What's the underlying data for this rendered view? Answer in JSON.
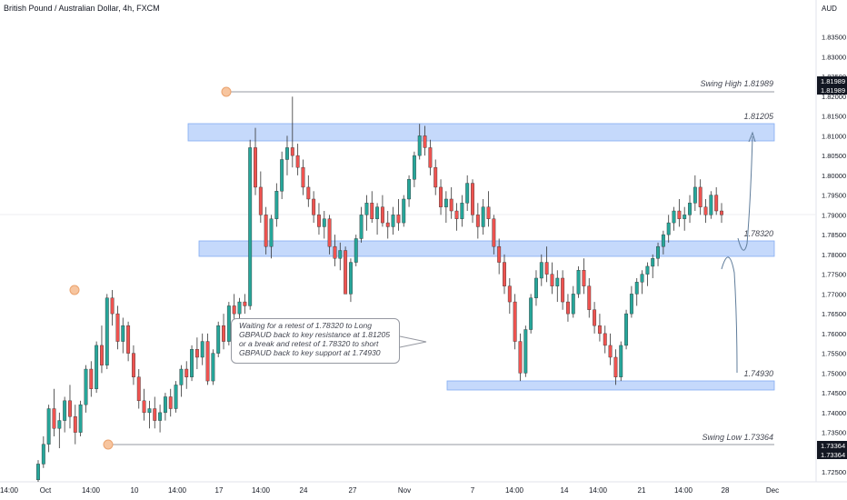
{
  "header": {
    "title": "British Pound / Australian Dollar, 4h, FXCM"
  },
  "chart_data": {
    "type": "candlestick",
    "symbol": "British Pound / Australian Dollar",
    "timeframe": "4h",
    "source": "FXCM",
    "currency_label": "AUD",
    "ylim": [
      1.7225,
      1.8425
    ],
    "y_ticks": [
      "1.72500",
      "1.73000",
      "1.73500",
      "1.74000",
      "1.74500",
      "1.75000",
      "1.75500",
      "1.76000",
      "1.76500",
      "1.77000",
      "1.77500",
      "1.78000",
      "1.78500",
      "1.79000",
      "1.79500",
      "1.80000",
      "1.80500",
      "1.81000",
      "1.81500",
      "1.82000",
      "1.82500",
      "1.83000",
      "1.83500"
    ],
    "x_ticks": [
      "14:00",
      "Oct",
      "14:00",
      "10",
      "14:00",
      "17",
      "14:00",
      "24",
      "27",
      "Nov",
      "7",
      "14:00",
      "14",
      "14:00",
      "21",
      "14:00",
      "28",
      "Dec"
    ],
    "price_labels": [
      {
        "text": "1.81989",
        "value": 1.81989,
        "color": "#131722"
      },
      {
        "text": "1.73364",
        "value": 1.73364,
        "color": "#131722"
      }
    ],
    "zones": [
      {
        "name": "resistance",
        "from": 1.8088,
        "to": 1.8123
      },
      {
        "name": "key-level",
        "from": 1.7798,
        "to": 1.7832
      },
      {
        "name": "support",
        "from": 1.747,
        "to": 1.749
      }
    ],
    "levels": [
      {
        "name": "swing-high",
        "value": 1.81989,
        "label": "Swing High 1.81989"
      },
      {
        "name": "swing-low",
        "value": 1.73364,
        "label": "Swing Low 1.73364"
      }
    ],
    "annotations": {
      "zone_labels": [
        "1.81205",
        "1.78320",
        "1.74930"
      ],
      "note": "Waiting for a retest of 1.78320 to Long GBPAUD back to key resistance at 1.81205 or a break and retest of 1.78320 to short GBPAUD back to key support at 1.74930"
    },
    "candles": [
      [
        1.723,
        1.728,
        1.7225,
        1.727
      ],
      [
        1.727,
        1.734,
        1.726,
        1.732
      ],
      [
        1.732,
        1.742,
        1.73,
        1.741
      ],
      [
        1.741,
        1.746,
        1.734,
        1.736
      ],
      [
        1.736,
        1.74,
        1.731,
        1.738
      ],
      [
        1.738,
        1.744,
        1.735,
        1.743
      ],
      [
        1.743,
        1.747,
        1.736,
        1.739
      ],
      [
        1.739,
        1.742,
        1.732,
        1.735
      ],
      [
        1.735,
        1.743,
        1.734,
        1.742
      ],
      [
        1.742,
        1.752,
        1.74,
        1.751
      ],
      [
        1.751,
        1.753,
        1.744,
        1.746
      ],
      [
        1.746,
        1.758,
        1.745,
        1.757
      ],
      [
        1.757,
        1.762,
        1.75,
        1.752
      ],
      [
        1.752,
        1.77,
        1.751,
        1.769
      ],
      [
        1.769,
        1.771,
        1.762,
        1.765
      ],
      [
        1.765,
        1.767,
        1.756,
        1.758
      ],
      [
        1.758,
        1.764,
        1.755,
        1.762
      ],
      [
        1.762,
        1.763,
        1.753,
        1.755
      ],
      [
        1.755,
        1.757,
        1.747,
        1.749
      ],
      [
        1.749,
        1.751,
        1.741,
        1.743
      ],
      [
        1.743,
        1.746,
        1.738,
        1.74
      ],
      [
        1.74,
        1.743,
        1.736,
        1.741
      ],
      [
        1.741,
        1.744,
        1.736,
        1.738
      ],
      [
        1.738,
        1.742,
        1.735,
        1.74
      ],
      [
        1.74,
        1.745,
        1.738,
        1.744
      ],
      [
        1.744,
        1.746,
        1.739,
        1.741
      ],
      [
        1.741,
        1.748,
        1.74,
        1.747
      ],
      [
        1.747,
        1.752,
        1.744,
        1.751
      ],
      [
        1.751,
        1.753,
        1.746,
        1.749
      ],
      [
        1.749,
        1.757,
        1.748,
        1.756
      ],
      [
        1.756,
        1.759,
        1.751,
        1.754
      ],
      [
        1.754,
        1.76,
        1.752,
        1.758
      ],
      [
        1.758,
        1.76,
        1.747,
        1.748
      ],
      [
        1.748,
        1.756,
        1.747,
        1.755
      ],
      [
        1.755,
        1.763,
        1.754,
        1.762
      ],
      [
        1.762,
        1.765,
        1.756,
        1.758
      ],
      [
        1.758,
        1.768,
        1.757,
        1.767
      ],
      [
        1.767,
        1.77,
        1.763,
        1.765
      ],
      [
        1.765,
        1.769,
        1.762,
        1.768
      ],
      [
        1.768,
        1.77,
        1.765,
        1.767
      ],
      [
        1.767,
        1.809,
        1.766,
        1.807
      ],
      [
        1.807,
        1.812,
        1.795,
        1.797
      ],
      [
        1.797,
        1.801,
        1.788,
        1.79
      ],
      [
        1.79,
        1.792,
        1.78,
        1.782
      ],
      [
        1.782,
        1.79,
        1.779,
        1.789
      ],
      [
        1.789,
        1.798,
        1.787,
        1.796
      ],
      [
        1.796,
        1.806,
        1.794,
        1.804
      ],
      [
        1.804,
        1.81,
        1.8,
        1.807
      ],
      [
        1.807,
        1.8199,
        1.802,
        1.805
      ],
      [
        1.805,
        1.808,
        1.8,
        1.802
      ],
      [
        1.802,
        1.804,
        1.795,
        1.797
      ],
      [
        1.797,
        1.8,
        1.792,
        1.794
      ],
      [
        1.794,
        1.796,
        1.788,
        1.79
      ],
      [
        1.79,
        1.793,
        1.785,
        1.787
      ],
      [
        1.787,
        1.791,
        1.784,
        1.789
      ],
      [
        1.789,
        1.79,
        1.78,
        1.782
      ],
      [
        1.782,
        1.785,
        1.777,
        1.779
      ],
      [
        1.779,
        1.783,
        1.776,
        1.781
      ],
      [
        1.781,
        1.782,
        1.77,
        1.77
      ],
      [
        1.77,
        1.779,
        1.768,
        1.778
      ],
      [
        1.778,
        1.785,
        1.777,
        1.784
      ],
      [
        1.784,
        1.792,
        1.783,
        1.79
      ],
      [
        1.79,
        1.795,
        1.786,
        1.793
      ],
      [
        1.793,
        1.796,
        1.788,
        1.789
      ],
      [
        1.789,
        1.793,
        1.785,
        1.792
      ],
      [
        1.792,
        1.795,
        1.787,
        1.788
      ],
      [
        1.788,
        1.791,
        1.784,
        1.787
      ],
      [
        1.787,
        1.792,
        1.785,
        1.79
      ],
      [
        1.79,
        1.794,
        1.786,
        1.788
      ],
      [
        1.788,
        1.795,
        1.787,
        1.794
      ],
      [
        1.794,
        1.8,
        1.792,
        1.799
      ],
      [
        1.799,
        1.806,
        1.797,
        1.805
      ],
      [
        1.805,
        1.813,
        1.804,
        1.81
      ],
      [
        1.81,
        1.8125,
        1.805,
        1.807
      ],
      [
        1.807,
        1.809,
        1.8,
        1.802
      ],
      [
        1.802,
        1.804,
        1.795,
        1.797
      ],
      [
        1.797,
        1.799,
        1.79,
        1.792
      ],
      [
        1.792,
        1.796,
        1.788,
        1.794
      ],
      [
        1.794,
        1.797,
        1.789,
        1.791
      ],
      [
        1.791,
        1.793,
        1.786,
        1.789
      ],
      [
        1.789,
        1.795,
        1.787,
        1.793
      ],
      [
        1.793,
        1.8,
        1.791,
        1.798
      ],
      [
        1.798,
        1.799,
        1.788,
        1.79
      ],
      [
        1.79,
        1.793,
        1.784,
        1.787
      ],
      [
        1.787,
        1.794,
        1.785,
        1.792
      ],
      [
        1.792,
        1.796,
        1.787,
        1.789
      ],
      [
        1.789,
        1.79,
        1.78,
        1.782
      ],
      [
        1.782,
        1.784,
        1.775,
        1.778
      ],
      [
        1.778,
        1.78,
        1.77,
        1.772
      ],
      [
        1.772,
        1.774,
        1.765,
        1.768
      ],
      [
        1.768,
        1.77,
        1.756,
        1.758
      ],
      [
        1.758,
        1.76,
        1.748,
        1.75
      ],
      [
        1.75,
        1.762,
        1.749,
        1.761
      ],
      [
        1.761,
        1.77,
        1.76,
        1.769
      ],
      [
        1.769,
        1.776,
        1.767,
        1.774
      ],
      [
        1.774,
        1.78,
        1.772,
        1.778
      ],
      [
        1.778,
        1.782,
        1.773,
        1.775
      ],
      [
        1.775,
        1.778,
        1.77,
        1.772
      ],
      [
        1.772,
        1.776,
        1.768,
        1.774
      ],
      [
        1.774,
        1.776,
        1.766,
        1.768
      ],
      [
        1.768,
        1.77,
        1.763,
        1.765
      ],
      [
        1.765,
        1.772,
        1.764,
        1.77
      ],
      [
        1.77,
        1.777,
        1.769,
        1.776
      ],
      [
        1.776,
        1.779,
        1.77,
        1.772
      ],
      [
        1.772,
        1.774,
        1.764,
        1.766
      ],
      [
        1.766,
        1.768,
        1.76,
        1.762
      ],
      [
        1.762,
        1.765,
        1.758,
        1.76
      ],
      [
        1.76,
        1.762,
        1.755,
        1.757
      ],
      [
        1.757,
        1.76,
        1.752,
        1.754
      ],
      [
        1.754,
        1.756,
        1.747,
        1.749
      ],
      [
        1.749,
        1.758,
        1.748,
        1.757
      ],
      [
        1.757,
        1.766,
        1.756,
        1.765
      ],
      [
        1.765,
        1.772,
        1.764,
        1.77
      ],
      [
        1.77,
        1.774,
        1.767,
        1.773
      ],
      [
        1.773,
        1.776,
        1.77,
        1.775
      ],
      [
        1.775,
        1.778,
        1.772,
        1.777
      ],
      [
        1.777,
        1.78,
        1.774,
        1.779
      ],
      [
        1.779,
        1.783,
        1.777,
        1.782
      ],
      [
        1.782,
        1.786,
        1.78,
        1.785
      ],
      [
        1.785,
        1.79,
        1.783,
        1.788
      ],
      [
        1.788,
        1.792,
        1.786,
        1.791
      ],
      [
        1.791,
        1.794,
        1.787,
        1.789
      ],
      [
        1.789,
        1.792,
        1.786,
        1.79
      ],
      [
        1.79,
        1.795,
        1.788,
        1.793
      ],
      [
        1.793,
        1.8,
        1.791,
        1.797
      ],
      [
        1.797,
        1.799,
        1.79,
        1.792
      ],
      [
        1.792,
        1.794,
        1.788,
        1.79
      ],
      [
        1.79,
        1.796,
        1.789,
        1.795
      ],
      [
        1.795,
        1.797,
        1.79,
        1.791
      ],
      [
        1.791,
        1.793,
        1.788,
        1.79
      ]
    ]
  }
}
